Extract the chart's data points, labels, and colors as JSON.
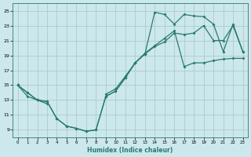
{
  "xlabel": "Humidex (Indice chaleur)",
  "xlim": [
    -0.5,
    23.5
  ],
  "ylim": [
    8.0,
    26.0
  ],
  "yticks": [
    9,
    11,
    13,
    15,
    17,
    19,
    21,
    23,
    25
  ],
  "xticks": [
    0,
    1,
    2,
    3,
    4,
    5,
    6,
    7,
    8,
    9,
    10,
    11,
    12,
    13,
    14,
    15,
    16,
    17,
    18,
    19,
    20,
    21,
    22,
    23
  ],
  "bg_color": "#cce8ec",
  "grid_color": "#aacccc",
  "line_color": "#2a7a70",
  "line1_x": [
    0,
    1,
    2,
    3,
    4,
    5,
    6,
    7,
    8,
    9,
    10,
    11,
    12,
    13,
    14,
    15,
    16,
    17,
    18,
    19,
    20,
    21,
    22,
    23
  ],
  "line1_y": [
    15.0,
    14.0,
    13.0,
    12.8,
    10.5,
    9.5,
    9.2,
    8.8,
    9.0,
    13.5,
    14.2,
    16.0,
    18.0,
    19.2,
    24.8,
    24.5,
    23.2,
    24.5,
    24.3,
    24.2,
    23.2,
    19.5,
    23.2,
    19.5
  ],
  "line2_x": [
    0,
    1,
    2,
    3,
    4,
    5,
    6,
    7,
    8,
    9,
    10,
    11,
    12,
    13,
    14,
    15,
    16,
    17,
    18,
    19,
    20,
    21,
    22,
    23
  ],
  "line2_y": [
    15.0,
    14.0,
    13.0,
    12.8,
    10.5,
    9.5,
    9.2,
    8.8,
    9.0,
    13.5,
    14.2,
    16.0,
    18.0,
    19.2,
    20.2,
    20.8,
    22.0,
    21.8,
    22.0,
    23.0,
    21.0,
    21.0,
    23.0,
    19.5
  ],
  "line3_x": [
    0,
    1,
    2,
    3,
    9,
    10,
    11,
    12,
    13,
    14,
    15,
    16,
    17,
    18,
    19,
    20,
    21,
    22,
    23
  ],
  "line3_y": [
    15.0,
    13.5,
    13.0,
    12.5,
    13.8,
    14.5,
    16.2,
    18.0,
    19.3,
    20.3,
    21.3,
    22.3,
    17.5,
    18.0,
    18.0,
    18.3,
    18.5,
    18.6,
    18.6
  ]
}
